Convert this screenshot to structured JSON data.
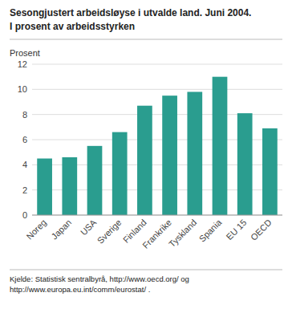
{
  "chart_data": {
    "type": "bar",
    "title": "Sesongjustert arbeidsløyse i utvalde land. Juni 2004.",
    "subtitle": "I prosent av arbeidsstyrken",
    "ylabel": "Prosent",
    "categories": [
      "Noreg",
      "Japan",
      "USA",
      "Sverige",
      "Finland",
      "Frankrike",
      "Tyskland",
      "Spania",
      "EU 15",
      "OECD"
    ],
    "values": [
      4.5,
      4.6,
      5.5,
      6.6,
      8.7,
      9.5,
      9.8,
      11.0,
      8.1,
      6.9
    ],
    "color": "#2a9d8f",
    "ylim": [
      0,
      12
    ],
    "yticks": [
      0,
      2,
      4,
      6,
      8,
      10,
      12
    ],
    "grid": true,
    "footnote": "Kjelde: Statistisk sentralbyrå, http://www.oecd.org/ og\nhttp://www.europa.eu.int/comm/eurostat/ ."
  }
}
